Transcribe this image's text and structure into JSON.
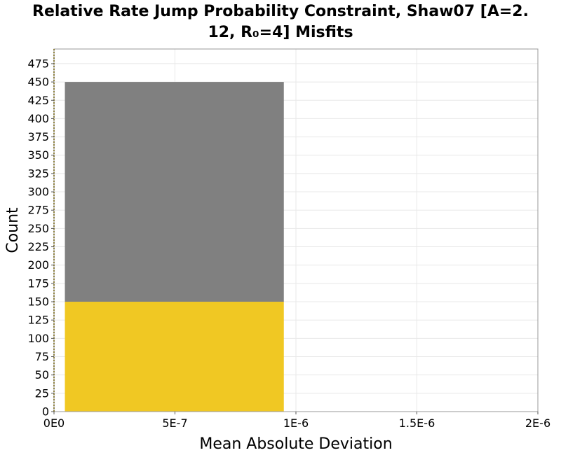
{
  "chart_data": {
    "type": "bar",
    "title": "Relative Rate Jump Probability Constraint, Shaw07 [A=2.\n12, R₀=4] Misfits",
    "xlabel": "Mean Absolute Deviation",
    "ylabel": "Count",
    "xlim": [
      0,
      2e-06
    ],
    "ylim": [
      0,
      495
    ],
    "grid": true,
    "x_ticks": [
      {
        "value": 0,
        "label": "0E0"
      },
      {
        "value": 5e-07,
        "label": "5E-7"
      },
      {
        "value": 1e-06,
        "label": "1E-6"
      },
      {
        "value": 1.5e-06,
        "label": "1.5E-6"
      },
      {
        "value": 2e-06,
        "label": "2E-6"
      }
    ],
    "y_ticks": [
      0,
      25,
      50,
      75,
      100,
      125,
      150,
      175,
      200,
      225,
      250,
      275,
      300,
      325,
      350,
      375,
      400,
      425,
      450,
      475
    ],
    "bins": [
      {
        "x_start": 4.5e-08,
        "x_end": 9.5e-07,
        "segments": [
          {
            "value": 150,
            "color": "#f0c823"
          },
          {
            "value": 300,
            "color": "#808080"
          }
        ]
      }
    ],
    "colors": {
      "highlight": "#f0c823",
      "remainder": "#808080",
      "grid": "#e8e8e8",
      "frame": "#999999"
    }
  }
}
